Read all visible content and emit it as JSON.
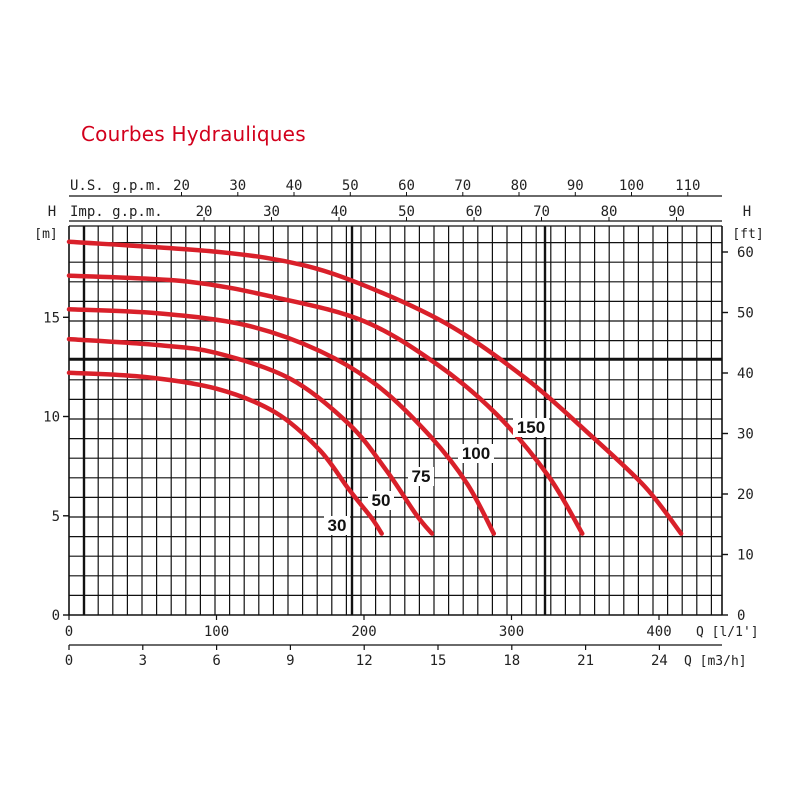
{
  "title": "Courbes Hydrauliques",
  "colors": {
    "title": "#d2001c",
    "curve": "#d9202a",
    "grid": "#111111",
    "text": "#222222"
  },
  "chart_data": {
    "type": "line",
    "title": "Courbes Hydrauliques",
    "grid": true,
    "legend": "curve labels on the curves",
    "axes": {
      "x_lpm": {
        "label": "Q",
        "unit": "[l/1']",
        "range": [
          0,
          440
        ],
        "ticks": [
          0,
          100,
          200,
          300,
          400
        ]
      },
      "x_m3h": {
        "label": "Q",
        "unit": "[m3/h]",
        "range": [
          0,
          26.4
        ],
        "ticks": [
          0,
          3,
          6,
          9,
          12,
          15,
          18,
          21,
          24
        ]
      },
      "x_usgpm": {
        "label": "U.S. g.p.m.",
        "ticks": [
          20,
          30,
          40,
          50,
          60,
          70,
          80,
          90,
          100,
          110
        ]
      },
      "x_impgpm": {
        "label": "Imp. g.p.m.",
        "ticks": [
          20,
          30,
          40,
          50,
          60,
          70,
          80,
          90
        ]
      },
      "y_m": {
        "label": "H",
        "unit": "[m]",
        "range": [
          0,
          19
        ],
        "ticks": [
          0,
          5,
          10,
          15
        ]
      },
      "y_ft": {
        "label": "H",
        "unit": "[ft]",
        "ticks": [
          0,
          10,
          20,
          30,
          40,
          50,
          60
        ]
      }
    },
    "x_unit": "l/min",
    "y_unit": "m",
    "series": [
      {
        "name": "30",
        "points": [
          [
            0,
            12.2
          ],
          [
            50,
            12.0
          ],
          [
            100,
            11.4
          ],
          [
            140,
            10.2
          ],
          [
            170,
            8.3
          ],
          [
            190,
            6.3
          ],
          [
            205,
            4.9
          ],
          [
            212,
            4.1
          ]
        ]
      },
      {
        "name": "50",
        "points": [
          [
            0,
            13.9
          ],
          [
            60,
            13.6
          ],
          [
            100,
            13.2
          ],
          [
            150,
            11.9
          ],
          [
            190,
            9.6
          ],
          [
            215,
            7.3
          ],
          [
            235,
            5.1
          ],
          [
            246,
            4.1
          ]
        ]
      },
      {
        "name": "75",
        "points": [
          [
            0,
            15.4
          ],
          [
            60,
            15.2
          ],
          [
            120,
            14.6
          ],
          [
            170,
            13.3
          ],
          [
            210,
            11.5
          ],
          [
            245,
            9.0
          ],
          [
            270,
            6.6
          ],
          [
            288,
            4.1
          ]
        ]
      },
      {
        "name": "100",
        "points": [
          [
            0,
            17.1
          ],
          [
            80,
            16.8
          ],
          [
            140,
            16.0
          ],
          [
            200,
            14.8
          ],
          [
            250,
            12.6
          ],
          [
            290,
            10.1
          ],
          [
            325,
            7.0
          ],
          [
            348,
            4.1
          ]
        ]
      },
      {
        "name": "150",
        "points": [
          [
            0,
            18.8
          ],
          [
            100,
            18.3
          ],
          [
            160,
            17.6
          ],
          [
            210,
            16.3
          ],
          [
            260,
            14.5
          ],
          [
            310,
            11.9
          ],
          [
            350,
            9.3
          ],
          [
            390,
            6.5
          ],
          [
            415,
            4.1
          ]
        ]
      }
    ]
  }
}
